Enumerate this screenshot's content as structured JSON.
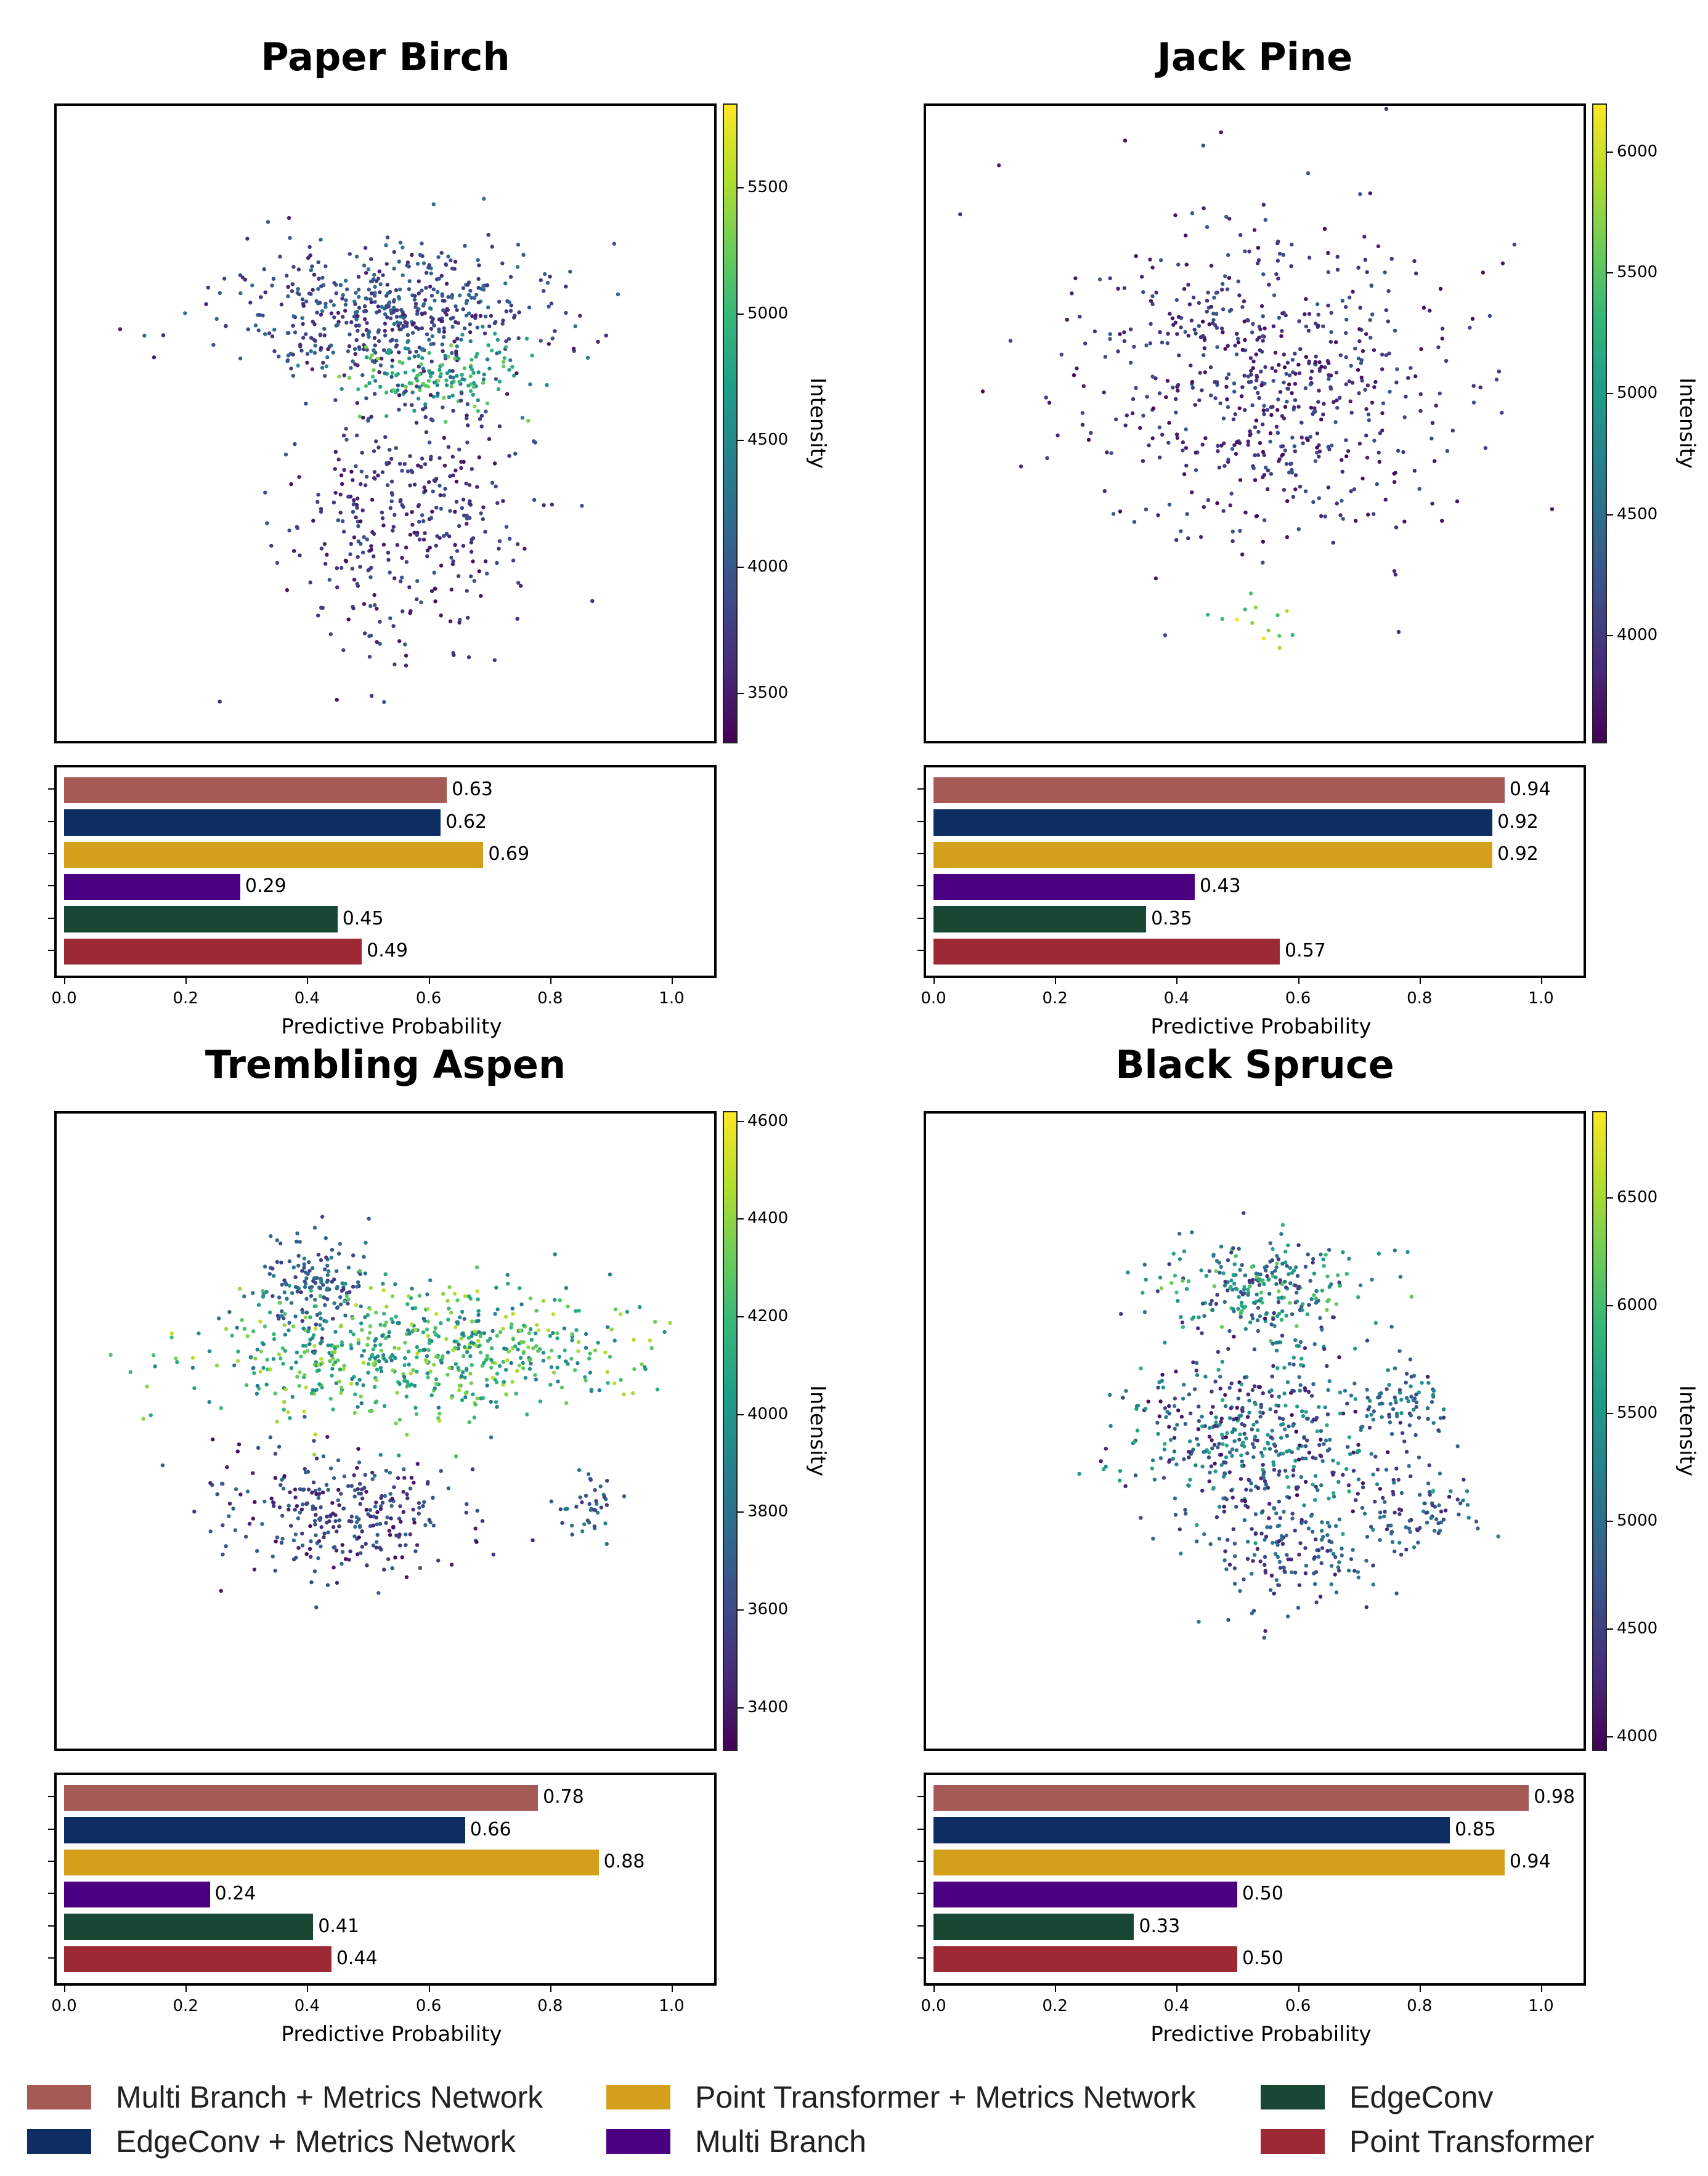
{
  "models": [
    {
      "name": "Multi Branch + Metrics Network",
      "color": "#a55a55"
    },
    {
      "name": "EdgeConv + Metrics Network",
      "color": "#0e2d63"
    },
    {
      "name": "Point Transformer + Metrics Network",
      "color": "#d4a01b"
    },
    {
      "name": "Multi Branch",
      "color": "#4b0082"
    },
    {
      "name": "EdgeConv",
      "color": "#184834"
    },
    {
      "name": "Point Transformer",
      "color": "#9c2933"
    }
  ],
  "chart_data": [
    {
      "species": "Paper Birch",
      "scatter": {
        "type": "scatter",
        "colormap": "viridis",
        "colorbar_label": "Intensity",
        "color_range": [
          3300,
          5830
        ],
        "colorbar_ticks": [
          3500,
          4000,
          4500,
          5000,
          5500
        ],
        "clusters": [
          {
            "cx": 0.49,
            "cy": 0.32,
            "sx": 0.12,
            "sy": 0.05,
            "n": 520,
            "intensity": [
              3500,
              4300
            ]
          },
          {
            "cx": 0.58,
            "cy": 0.42,
            "sx": 0.07,
            "sy": 0.03,
            "n": 160,
            "intensity": [
              4300,
              5400
            ]
          },
          {
            "cx": 0.53,
            "cy": 0.64,
            "sx": 0.09,
            "sy": 0.11,
            "n": 380,
            "intensity": [
              3400,
              4000
            ]
          }
        ]
      },
      "bars": {
        "type": "bar",
        "orientation": "horizontal",
        "xlabel": "Predictive Probability",
        "xlim": [
          0,
          1.07
        ],
        "xticks": [
          "0.0",
          "0.2",
          "0.4",
          "0.6",
          "0.8",
          "1.0"
        ],
        "values": [
          0.63,
          0.62,
          0.69,
          0.29,
          0.45,
          0.49
        ],
        "labels": [
          "0.63",
          "0.62",
          "0.69",
          "0.29",
          "0.45",
          "0.49"
        ]
      }
    },
    {
      "species": "Jack Pine",
      "scatter": {
        "type": "scatter",
        "colormap": "viridis",
        "colorbar_label": "Intensity",
        "color_range": [
          3550,
          6200
        ],
        "colorbar_ticks": [
          4000,
          4500,
          5000,
          5500,
          6000
        ],
        "clusters": [
          {
            "cx": 0.52,
            "cy": 0.43,
            "sx": 0.14,
            "sy": 0.12,
            "n": 650,
            "intensity": [
              3600,
              4300
            ]
          },
          {
            "cx": 0.51,
            "cy": 0.82,
            "sx": 0.03,
            "sy": 0.03,
            "n": 14,
            "intensity": [
              5200,
              6200
            ]
          }
        ]
      },
      "bars": {
        "type": "bar",
        "orientation": "horizontal",
        "xlabel": "Predictive Probability",
        "xlim": [
          0,
          1.07
        ],
        "xticks": [
          "0.0",
          "0.2",
          "0.4",
          "0.6",
          "0.8",
          "1.0"
        ],
        "values": [
          0.94,
          0.92,
          0.92,
          0.43,
          0.35,
          0.57
        ],
        "labels": [
          "0.94",
          "0.92",
          "0.92",
          "0.43",
          "0.35",
          "0.57"
        ]
      }
    },
    {
      "species": "Trembling Aspen",
      "scatter": {
        "type": "scatter",
        "colormap": "viridis",
        "colorbar_label": "Intensity",
        "color_range": [
          3310,
          4620
        ],
        "colorbar_ticks": [
          3400,
          3600,
          3800,
          4000,
          4200,
          4400,
          4600
        ],
        "clusters": [
          {
            "cx": 0.39,
            "cy": 0.27,
            "sx": 0.04,
            "sy": 0.04,
            "n": 140,
            "intensity": [
              3500,
              3900
            ]
          },
          {
            "cx": 0.55,
            "cy": 0.37,
            "sx": 0.16,
            "sy": 0.05,
            "n": 650,
            "intensity": [
              3800,
              4500
            ]
          },
          {
            "cx": 0.42,
            "cy": 0.63,
            "sx": 0.09,
            "sy": 0.05,
            "n": 300,
            "intensity": [
              3350,
              3800
            ]
          },
          {
            "cx": 0.8,
            "cy": 0.62,
            "sx": 0.03,
            "sy": 0.04,
            "n": 40,
            "intensity": [
              3500,
              3900
            ]
          }
        ]
      },
      "bars": {
        "type": "bar",
        "orientation": "horizontal",
        "xlabel": "Predictive Probability",
        "xlim": [
          0,
          1.07
        ],
        "xticks": [
          "0.0",
          "0.2",
          "0.4",
          "0.6",
          "0.8",
          "1.0"
        ],
        "values": [
          0.78,
          0.66,
          0.88,
          0.24,
          0.41,
          0.44
        ],
        "labels": [
          "0.78",
          "0.66",
          "0.88",
          "0.24",
          "0.41",
          "0.44"
        ]
      }
    },
    {
      "species": "Black Spruce",
      "scatter": {
        "type": "scatter",
        "colormap": "viridis",
        "colorbar_label": "Intensity",
        "color_range": [
          3930,
          6900
        ],
        "colorbar_ticks": [
          4000,
          4500,
          5000,
          5500,
          6000,
          6500
        ],
        "clusters": [
          {
            "cx": 0.52,
            "cy": 0.27,
            "sx": 0.08,
            "sy": 0.04,
            "n": 260,
            "intensity": [
              4300,
              6300
            ]
          },
          {
            "cx": 0.5,
            "cy": 0.5,
            "sx": 0.1,
            "sy": 0.08,
            "n": 480,
            "intensity": [
              4000,
              5800
            ]
          },
          {
            "cx": 0.72,
            "cy": 0.45,
            "sx": 0.03,
            "sy": 0.03,
            "n": 70,
            "intensity": [
              4500,
              5500
            ]
          },
          {
            "cx": 0.74,
            "cy": 0.62,
            "sx": 0.05,
            "sy": 0.03,
            "n": 80,
            "intensity": [
              4200,
              5300
            ]
          },
          {
            "cx": 0.55,
            "cy": 0.68,
            "sx": 0.08,
            "sy": 0.05,
            "n": 160,
            "intensity": [
              4200,
              5200
            ]
          }
        ]
      },
      "bars": {
        "type": "bar",
        "orientation": "horizontal",
        "xlabel": "Predictive Probability",
        "xlim": [
          0,
          1.07
        ],
        "xticks": [
          "0.0",
          "0.2",
          "0.4",
          "0.6",
          "0.8",
          "1.0"
        ],
        "values": [
          0.98,
          0.85,
          0.94,
          0.5,
          0.33,
          0.5
        ],
        "labels": [
          "0.98",
          "0.85",
          "0.94",
          "0.50",
          "0.33",
          "0.50"
        ]
      }
    }
  ]
}
